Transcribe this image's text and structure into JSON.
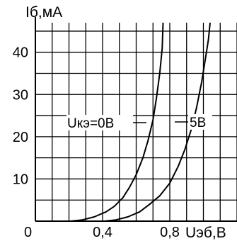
{
  "chart_data": {
    "type": "line",
    "y_axis_label": "Iб,мА",
    "x_axis_label": "Uэб,В",
    "x_tick_labels": [
      "0",
      "0,4",
      "0,8"
    ],
    "y_tick_labels": [
      "10",
      "20",
      "30",
      "40"
    ],
    "xlim": [
      0,
      1.2
    ],
    "ylim": [
      0,
      47
    ],
    "grid": true,
    "series": [
      {
        "name": "Uкэ=0В",
        "x": [
          0.21,
          0.28,
          0.35,
          0.42,
          0.47,
          0.52,
          0.56,
          0.6,
          0.64,
          0.67,
          0.7,
          0.72,
          0.74,
          0.755,
          0.76
        ],
        "y": [
          0,
          0.3,
          1,
          2.2,
          3.5,
          5.5,
          8,
          11,
          15,
          19,
          24,
          29,
          35,
          41,
          47
        ]
      },
      {
        "name": "5В",
        "x": [
          0.41,
          0.48,
          0.55,
          0.62,
          0.68,
          0.74,
          0.8,
          0.85,
          0.89,
          0.93,
          0.96,
          0.99,
          1.01,
          1.03,
          1.04
        ],
        "y": [
          0,
          0.3,
          1,
          2.2,
          4,
          6,
          9,
          13,
          17,
          22,
          27,
          33,
          38,
          43,
          47
        ]
      }
    ]
  }
}
